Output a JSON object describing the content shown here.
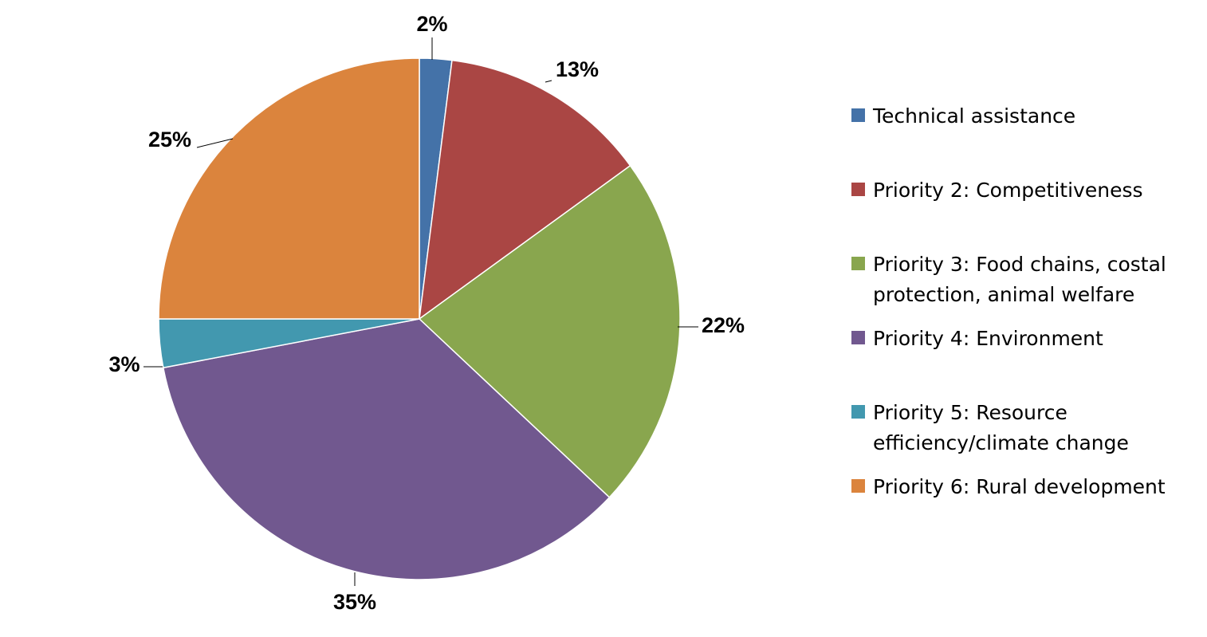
{
  "chart_data": {
    "type": "pie",
    "title": "",
    "slices": [
      {
        "label": "Technical assistance",
        "value": 2,
        "display": "2%",
        "color": "#4472A8"
      },
      {
        "label": "Priority 2: Competitiveness",
        "value": 13,
        "display": "13%",
        "color": "#AA4644"
      },
      {
        "label": "Priority 3: Food chains, costal\nprotection, animal welfare",
        "value": 22,
        "display": "22%",
        "color": "#89A64E"
      },
      {
        "label": "Priority 4: Environment",
        "value": 35,
        "display": "35%",
        "color": "#71588F"
      },
      {
        "label": "Priority 5: Resource\nefficiency/climate change",
        "value": 3,
        "display": "3%",
        "color": "#4298AF"
      },
      {
        "label": "Priority 6: Rural development",
        "value": 25,
        "display": "25%",
        "color": "#DB843D"
      }
    ],
    "legend_position": "right",
    "start_angle": "12 o'clock",
    "direction": "clockwise"
  }
}
